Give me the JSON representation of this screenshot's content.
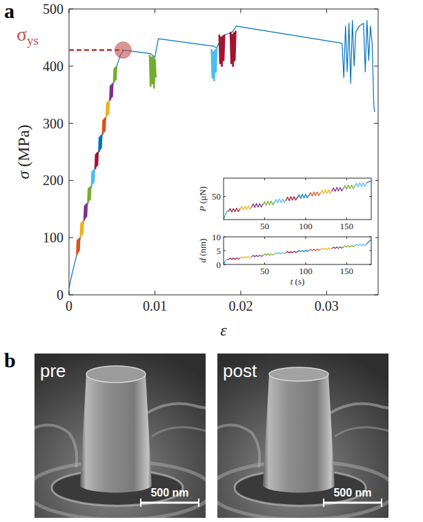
{
  "chart_data": [
    {
      "type": "line",
      "panel_label": "a",
      "x_label": "ε",
      "y_label": "σ (MPa)",
      "xlim": [
        0,
        0.036
      ],
      "ylim": [
        0,
        500
      ],
      "xticks": [
        0,
        0.01,
        0.02,
        0.03
      ],
      "yticks": [
        0,
        100,
        200,
        300,
        400,
        500
      ],
      "annotation": {
        "label": "σ",
        "subscript": "ys",
        "strain": 0.0063,
        "value": 428,
        "color": "#c0504d"
      },
      "series": [
        {
          "color": "#0072BD",
          "x": [
            0,
            0.0004,
            0.0009,
            0.0056,
            0.006,
            0.0064,
            0.0095,
            0.01,
            0.0104,
            0.0168,
            0.0172,
            0.0177,
            0.0181,
            0.0189,
            0.0195,
            0.0318,
            0.032,
            0.0322,
            0.0324,
            0.0326,
            0.0328,
            0.033,
            0.0332,
            0.0334,
            0.0338,
            0.0343,
            0.0345,
            0.0347,
            0.0349,
            0.0351,
            0.0353,
            0.0355,
            0.0356
          ],
          "values": [
            12,
            40,
            70,
            402,
            420,
            428,
            422,
            415,
            448,
            435,
            432,
            448,
            455,
            458,
            470,
            440,
            380,
            470,
            390,
            475,
            370,
            480,
            400,
            460,
            470,
            475,
            390,
            480,
            410,
            470,
            440,
            330,
            320
          ]
        },
        {
          "color": "#D95319",
          "x": [
            0.00092,
            0.00098,
            0.00104,
            0.0011,
            0.00116,
            0.00122
          ],
          "values": [
            70,
            95,
            75,
            97,
            77,
            100
          ]
        },
        {
          "color": "#EDB120",
          "x": [
            0.00135,
            0.00141,
            0.00147,
            0.00153,
            0.00159,
            0.00165
          ],
          "values": [
            100,
            125,
            105,
            127,
            107,
            130
          ]
        },
        {
          "color": "#7E2F8E",
          "x": [
            0.00178,
            0.00184,
            0.0019,
            0.00196,
            0.00202,
            0.00208
          ],
          "values": [
            130,
            155,
            135,
            157,
            137,
            160
          ]
        },
        {
          "color": "#77AC30",
          "x": [
            0.00221,
            0.00227,
            0.00233,
            0.00239,
            0.00245,
            0.00251
          ],
          "values": [
            160,
            185,
            165,
            187,
            167,
            190
          ]
        },
        {
          "color": "#4DBEEE",
          "x": [
            0.00264,
            0.0027,
            0.00276,
            0.00282,
            0.00288,
            0.00294
          ],
          "values": [
            190,
            215,
            195,
            217,
            197,
            220
          ]
        },
        {
          "color": "#A2142F",
          "x": [
            0.00306,
            0.00312,
            0.00318,
            0.00324,
            0.0033,
            0.00336
          ],
          "values": [
            220,
            245,
            225,
            247,
            227,
            250
          ]
        },
        {
          "color": "#0072BD",
          "x": [
            0.00349,
            0.00355,
            0.00361,
            0.00367,
            0.00373,
            0.00379
          ],
          "values": [
            250,
            275,
            255,
            277,
            257,
            280
          ]
        },
        {
          "color": "#D95319",
          "x": [
            0.00392,
            0.00398,
            0.00404,
            0.0041,
            0.00416,
            0.00422
          ],
          "values": [
            280,
            305,
            285,
            307,
            287,
            310
          ]
        },
        {
          "color": "#EDB120",
          "x": [
            0.00435,
            0.00441,
            0.00447,
            0.00453,
            0.00459,
            0.00465
          ],
          "values": [
            310,
            335,
            315,
            337,
            317,
            340
          ]
        },
        {
          "color": "#7E2F8E",
          "x": [
            0.00478,
            0.00484,
            0.0049,
            0.00496,
            0.00502,
            0.00508
          ],
          "values": [
            340,
            365,
            345,
            367,
            347,
            370
          ]
        },
        {
          "color": "#77AC30",
          "x": [
            0.00521,
            0.00527,
            0.00533,
            0.00539,
            0.00545,
            0.00551
          ],
          "values": [
            370,
            395,
            375,
            397,
            377,
            400
          ]
        },
        {
          "color": "#77AC30",
          "x": [
            0.0094,
            0.0095,
            0.0096,
            0.0097,
            0.0098,
            0.0099,
            0.01,
            0.0101
          ],
          "values": [
            420,
            365,
            415,
            370,
            418,
            362,
            412,
            380
          ]
        },
        {
          "color": "#4DBEEE",
          "x": [
            0.0166,
            0.0167,
            0.0168,
            0.0169,
            0.017,
            0.0171,
            0.0172
          ],
          "values": [
            430,
            380,
            425,
            375,
            428,
            390,
            432
          ]
        },
        {
          "color": "#A2142F",
          "x": [
            0.0175,
            0.0176,
            0.0177,
            0.0178,
            0.0179,
            0.018,
            0.0181
          ],
          "values": [
            455,
            405,
            450,
            400,
            452,
            410,
            455
          ]
        },
        {
          "color": "#A2142F",
          "x": [
            0.0188,
            0.0189,
            0.019,
            0.0191,
            0.0192,
            0.0193,
            0.0194
          ],
          "values": [
            460,
            405,
            455,
            400,
            458,
            410,
            462
          ]
        }
      ]
    },
    {
      "type": "line",
      "y_label": "P (μN)",
      "xlim": [
        0,
        180
      ],
      "ylim": [
        0,
        90
      ],
      "xticks": [
        50,
        100,
        150
      ],
      "yticks": [
        50
      ],
      "series": [
        {
          "color": "#0072BD",
          "x": [
            0,
            2,
            4,
            6
          ],
          "values": [
            0,
            10,
            17,
            20
          ]
        },
        {
          "color": "#A2142F",
          "x": [
            6,
            8,
            10,
            12,
            14,
            16,
            18,
            20
          ],
          "values": [
            17,
            24,
            16,
            24,
            17,
            25,
            17,
            24
          ]
        },
        {
          "color": "#EDB120",
          "x": [
            20,
            22,
            24,
            26,
            28,
            30,
            32,
            34
          ],
          "values": [
            21,
            29,
            21,
            29,
            22,
            30,
            22,
            29
          ]
        },
        {
          "color": "#7E2F8E",
          "x": [
            34,
            36,
            38,
            40,
            42,
            44,
            46,
            48
          ],
          "values": [
            26,
            34,
            26,
            35,
            27,
            35,
            27,
            34
          ]
        },
        {
          "color": "#77AC30",
          "x": [
            48,
            50,
            52,
            54,
            56,
            58,
            60,
            62
          ],
          "values": [
            31,
            39,
            31,
            40,
            32,
            40,
            32,
            39
          ]
        },
        {
          "color": "#4DBEEE",
          "x": [
            62,
            64,
            66,
            68,
            70,
            72,
            74,
            76
          ],
          "values": [
            36,
            44,
            36,
            45,
            37,
            45,
            37,
            44
          ]
        },
        {
          "color": "#A2142F",
          "x": [
            76,
            78,
            80,
            82,
            84,
            86,
            88,
            90
          ],
          "values": [
            41,
            49,
            41,
            50,
            42,
            50,
            42,
            49
          ]
        },
        {
          "color": "#0072BD",
          "x": [
            90,
            92,
            94,
            96,
            98,
            100,
            102,
            104
          ],
          "values": [
            46,
            54,
            46,
            55,
            47,
            55,
            47,
            54
          ]
        },
        {
          "color": "#D95319",
          "x": [
            104,
            106,
            108,
            110,
            112,
            114,
            116,
            118
          ],
          "values": [
            51,
            59,
            51,
            60,
            52,
            60,
            52,
            59
          ]
        },
        {
          "color": "#EDB120",
          "x": [
            118,
            120,
            122,
            124,
            126,
            128,
            130,
            132
          ],
          "values": [
            56,
            64,
            56,
            65,
            57,
            65,
            57,
            64
          ]
        },
        {
          "color": "#7E2F8E",
          "x": [
            132,
            134,
            136,
            138,
            140,
            142,
            144,
            146
          ],
          "values": [
            61,
            69,
            61,
            70,
            62,
            70,
            62,
            69
          ]
        },
        {
          "color": "#77AC30",
          "x": [
            146,
            148,
            150,
            152,
            154,
            156,
            158,
            160
          ],
          "values": [
            66,
            74,
            66,
            75,
            67,
            75,
            67,
            74
          ]
        },
        {
          "color": "#4DBEEE",
          "x": [
            160,
            162,
            164,
            166,
            168,
            170,
            172,
            174
          ],
          "values": [
            71,
            79,
            71,
            80,
            72,
            80,
            72,
            79
          ]
        },
        {
          "color": "#0072BD",
          "x": [
            174,
            177,
            180
          ],
          "values": [
            79,
            82,
            84
          ]
        }
      ]
    },
    {
      "type": "line",
      "x_label": "t (s)",
      "y_label": "d (nm)",
      "xlim": [
        0,
        180
      ],
      "ylim": [
        0,
        10
      ],
      "xticks": [
        50,
        100,
        150
      ],
      "yticks": [
        0,
        5,
        10
      ],
      "series": [
        {
          "color": "#0072BD",
          "x": [
            0,
            2,
            4,
            6
          ],
          "values": [
            0,
            1.3,
            1.8,
            2.0
          ]
        },
        {
          "color": "#A2142F",
          "x": [
            6,
            8,
            10,
            12,
            14,
            16,
            18,
            20
          ],
          "values": [
            1.7,
            2.3,
            1.8,
            2.3,
            1.8,
            2.4,
            1.9,
            2.3
          ]
        },
        {
          "color": "#EDB120",
          "x": [
            20,
            22,
            24,
            26,
            28,
            30,
            32,
            34
          ],
          "values": [
            2.2,
            2.8,
            2.3,
            2.8,
            2.3,
            2.9,
            2.4,
            2.8
          ]
        },
        {
          "color": "#7E2F8E",
          "x": [
            34,
            36,
            38,
            40,
            42,
            44,
            46,
            48
          ],
          "values": [
            2.7,
            3.3,
            2.8,
            3.3,
            2.8,
            3.4,
            2.9,
            3.3
          ]
        },
        {
          "color": "#77AC30",
          "x": [
            48,
            50,
            52,
            54,
            56,
            58,
            60,
            62
          ],
          "values": [
            3.2,
            3.8,
            3.3,
            3.8,
            3.3,
            3.9,
            3.4,
            3.8
          ]
        },
        {
          "color": "#4DBEEE",
          "x": [
            62,
            64,
            66,
            68,
            70,
            72,
            74,
            76
          ],
          "values": [
            3.7,
            4.3,
            3.8,
            4.3,
            3.8,
            4.4,
            3.9,
            4.3
          ]
        },
        {
          "color": "#A2142F",
          "x": [
            76,
            78,
            80,
            82,
            84,
            86,
            88,
            90
          ],
          "values": [
            4.1,
            4.7,
            4.2,
            4.7,
            4.2,
            4.8,
            4.3,
            4.7
          ]
        },
        {
          "color": "#0072BD",
          "x": [
            90,
            92,
            94,
            96,
            98,
            100,
            102,
            104
          ],
          "values": [
            4.5,
            5.1,
            4.6,
            5.1,
            4.6,
            5.2,
            4.7,
            5.1
          ]
        },
        {
          "color": "#D95319",
          "x": [
            104,
            106,
            108,
            110,
            112,
            114,
            116,
            118
          ],
          "values": [
            4.9,
            5.5,
            5.0,
            5.5,
            5.0,
            5.6,
            5.1,
            5.5
          ]
        },
        {
          "color": "#EDB120",
          "x": [
            118,
            120,
            122,
            124,
            126,
            128,
            130,
            132
          ],
          "values": [
            5.3,
            5.9,
            5.4,
            5.9,
            5.4,
            6.0,
            5.5,
            5.9
          ]
        },
        {
          "color": "#7E2F8E",
          "x": [
            132,
            134,
            136,
            138,
            140,
            142,
            144,
            146
          ],
          "values": [
            5.7,
            6.3,
            5.8,
            6.3,
            5.8,
            6.4,
            5.9,
            6.3
          ]
        },
        {
          "color": "#77AC30",
          "x": [
            146,
            148,
            150,
            152,
            154,
            156,
            158,
            160
          ],
          "values": [
            6.2,
            6.8,
            6.3,
            6.8,
            6.3,
            6.9,
            6.4,
            6.8
          ]
        },
        {
          "color": "#4DBEEE",
          "x": [
            160,
            162,
            164,
            166,
            168,
            170,
            172,
            174
          ],
          "values": [
            6.7,
            7.3,
            6.8,
            7.3,
            6.8,
            7.4,
            6.9,
            7.3
          ]
        },
        {
          "color": "#0072BD",
          "x": [
            174,
            177,
            180
          ],
          "values": [
            7.3,
            8.2,
            9.0
          ]
        }
      ]
    }
  ],
  "sem_images": {
    "panel_label": "b",
    "images": [
      {
        "label": "pre",
        "scale_bar": "500 nm"
      },
      {
        "label": "post",
        "scale_bar": "500 nm"
      }
    ]
  }
}
